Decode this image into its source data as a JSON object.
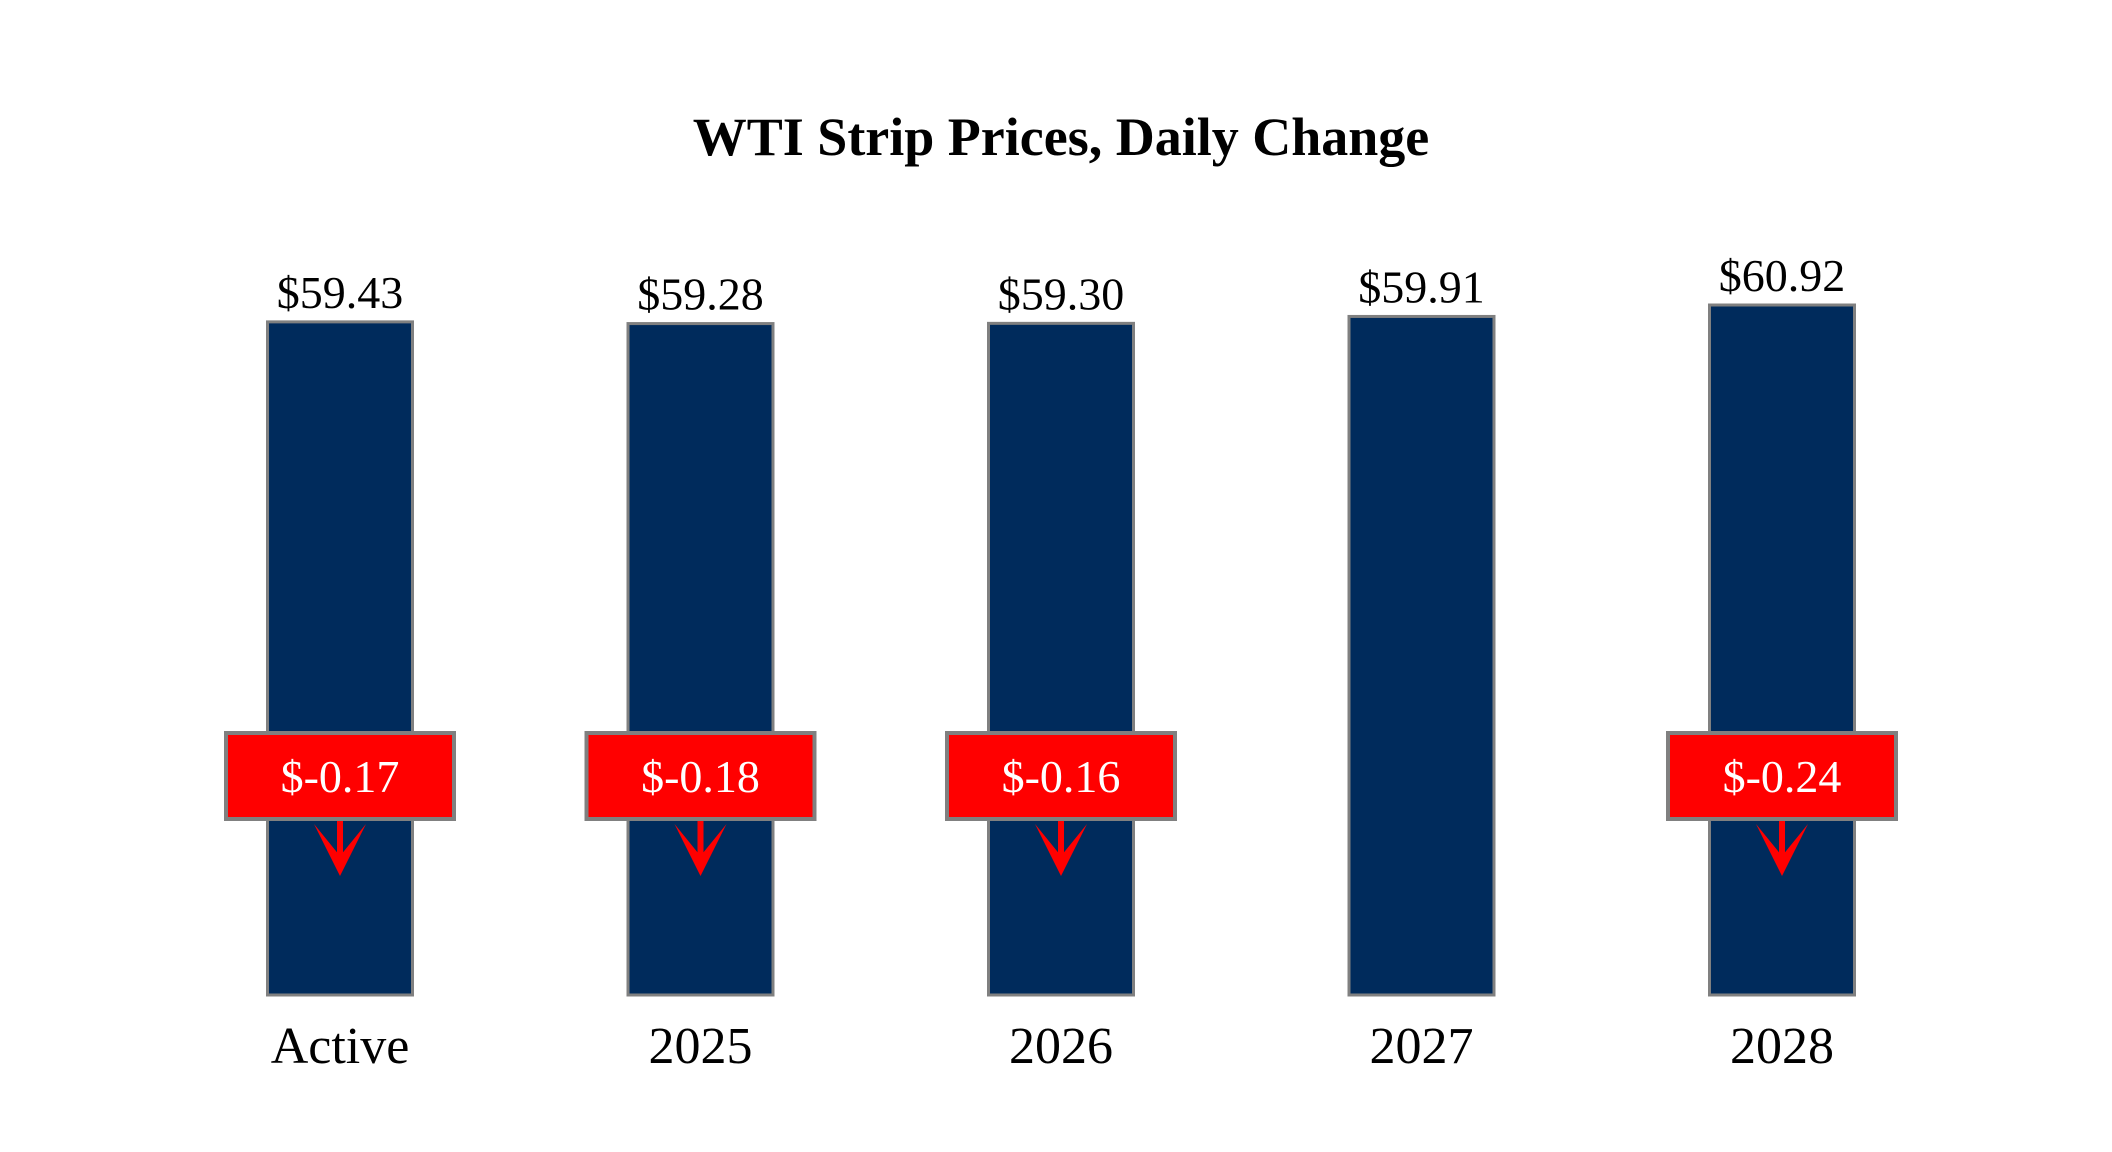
{
  "chart_data": {
    "type": "bar",
    "title": "WTI Strip Prices, Daily Change",
    "xlabel": "",
    "ylabel": "",
    "ylim": [
      0,
      60.92
    ],
    "grid": false,
    "categories": [
      "Active",
      "2025",
      "2026",
      "2027",
      "2028"
    ],
    "values": [
      59.43,
      59.28,
      59.3,
      59.91,
      60.92
    ],
    "value_labels": [
      "$59.43",
      "$59.28",
      "$59.30",
      "$59.91",
      "$60.92"
    ],
    "changes": [
      -0.17,
      -0.18,
      -0.16,
      null,
      -0.24
    ],
    "change_labels": [
      "$-0.17",
      "$-0.18",
      "$-0.16",
      "",
      "$-0.24"
    ],
    "colors": {
      "bar": "#002b5c",
      "bar_border": "#808080",
      "change_box": "#ff0000",
      "change_text": "#ffffff",
      "arrow": "#ff0000"
    }
  }
}
